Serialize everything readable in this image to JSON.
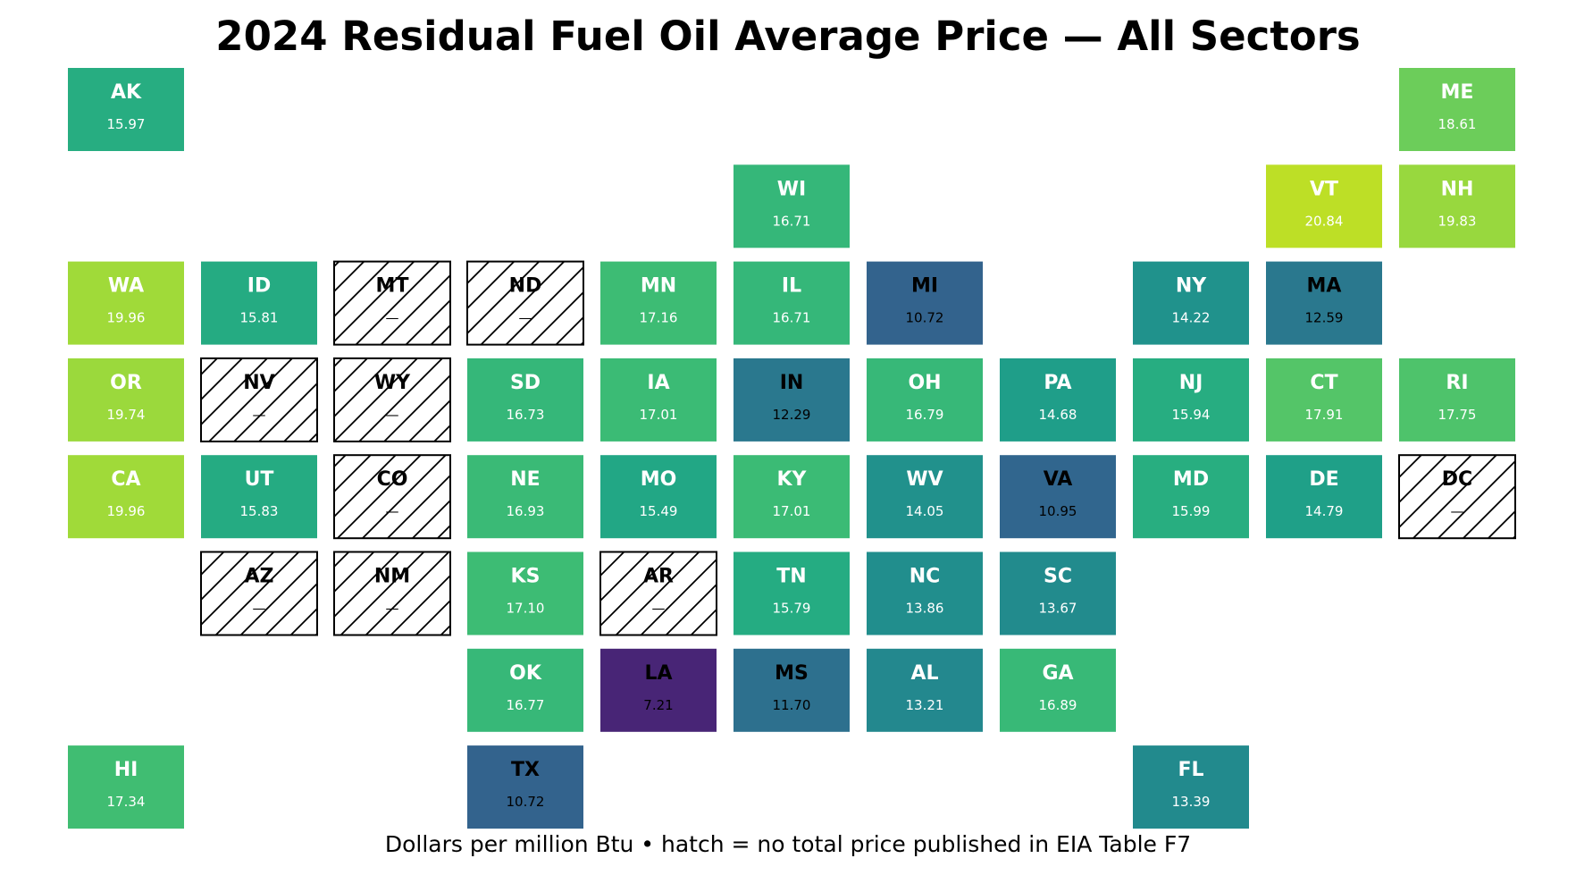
{
  "title": "2024 Residual Fuel Oil Average Price — All Sectors",
  "caption": "Dollars per million Btu • hatch = no total price published in EIA Table F7",
  "missing_label": "—",
  "hatch_fill": "#ffffff",
  "hatch_stroke": "#000000",
  "colors": {
    "dark_text": "#000000",
    "light_text": "#ffffff"
  },
  "states": [
    {
      "abbr": "AK",
      "row": 0,
      "col": 0,
      "value": "15.97",
      "color": "#27ad81",
      "text": "light"
    },
    {
      "abbr": "ME",
      "row": 0,
      "col": 10,
      "value": "18.61",
      "color": "#6ccd5a",
      "text": "light"
    },
    {
      "abbr": "WI",
      "row": 1,
      "col": 5,
      "value": "16.71",
      "color": "#35b779",
      "text": "light"
    },
    {
      "abbr": "VT",
      "row": 1,
      "col": 9,
      "value": "20.84",
      "color": "#bddf26",
      "text": "light"
    },
    {
      "abbr": "NH",
      "row": 1,
      "col": 10,
      "value": "19.83",
      "color": "#98d83e",
      "text": "light"
    },
    {
      "abbr": "WA",
      "row": 2,
      "col": 0,
      "value": "19.96",
      "color": "#a0da39",
      "text": "light"
    },
    {
      "abbr": "ID",
      "row": 2,
      "col": 1,
      "value": "15.81",
      "color": "#25ab82",
      "text": "light"
    },
    {
      "abbr": "MT",
      "row": 2,
      "col": 2,
      "value": null,
      "color": null,
      "text": "dark"
    },
    {
      "abbr": "ND",
      "row": 2,
      "col": 3,
      "value": null,
      "color": null,
      "text": "dark"
    },
    {
      "abbr": "MN",
      "row": 2,
      "col": 4,
      "value": "17.16",
      "color": "#3dbc74",
      "text": "light"
    },
    {
      "abbr": "IL",
      "row": 2,
      "col": 5,
      "value": "16.71",
      "color": "#35b779",
      "text": "light"
    },
    {
      "abbr": "MI",
      "row": 2,
      "col": 6,
      "value": "10.72",
      "color": "#33638d",
      "text": "dark"
    },
    {
      "abbr": "NY",
      "row": 2,
      "col": 8,
      "value": "14.22",
      "color": "#20928c",
      "text": "light"
    },
    {
      "abbr": "MA",
      "row": 2,
      "col": 9,
      "value": "12.59",
      "color": "#2a788e",
      "text": "dark"
    },
    {
      "abbr": "OR",
      "row": 3,
      "col": 0,
      "value": "19.74",
      "color": "#9bd93c",
      "text": "light"
    },
    {
      "abbr": "NV",
      "row": 3,
      "col": 1,
      "value": null,
      "color": null,
      "text": "dark"
    },
    {
      "abbr": "WY",
      "row": 3,
      "col": 2,
      "value": null,
      "color": null,
      "text": "dark"
    },
    {
      "abbr": "SD",
      "row": 3,
      "col": 3,
      "value": "16.73",
      "color": "#35b779",
      "text": "light"
    },
    {
      "abbr": "IA",
      "row": 3,
      "col": 4,
      "value": "17.01",
      "color": "#3bbb75",
      "text": "light"
    },
    {
      "abbr": "IN",
      "row": 3,
      "col": 5,
      "value": "12.29",
      "color": "#2a788e",
      "text": "dark"
    },
    {
      "abbr": "OH",
      "row": 3,
      "col": 6,
      "value": "16.79",
      "color": "#37b878",
      "text": "light"
    },
    {
      "abbr": "PA",
      "row": 3,
      "col": 7,
      "value": "14.68",
      "color": "#1f9e89",
      "text": "light"
    },
    {
      "abbr": "NJ",
      "row": 3,
      "col": 8,
      "value": "15.94",
      "color": "#27ad81",
      "text": "light"
    },
    {
      "abbr": "CT",
      "row": 3,
      "col": 9,
      "value": "17.91",
      "color": "#54c568",
      "text": "light"
    },
    {
      "abbr": "RI",
      "row": 3,
      "col": 10,
      "value": "17.75",
      "color": "#4ec36b",
      "text": "light"
    },
    {
      "abbr": "CA",
      "row": 4,
      "col": 0,
      "value": "19.96",
      "color": "#a0da39",
      "text": "light"
    },
    {
      "abbr": "UT",
      "row": 4,
      "col": 1,
      "value": "15.83",
      "color": "#25ab82",
      "text": "light"
    },
    {
      "abbr": "CO",
      "row": 4,
      "col": 2,
      "value": null,
      "color": null,
      "text": "dark"
    },
    {
      "abbr": "NE",
      "row": 4,
      "col": 3,
      "value": "16.93",
      "color": "#3aba76",
      "text": "light"
    },
    {
      "abbr": "MO",
      "row": 4,
      "col": 4,
      "value": "15.49",
      "color": "#22a785",
      "text": "light"
    },
    {
      "abbr": "KY",
      "row": 4,
      "col": 5,
      "value": "17.01",
      "color": "#3bbb75",
      "text": "light"
    },
    {
      "abbr": "WV",
      "row": 4,
      "col": 6,
      "value": "14.05",
      "color": "#21918c",
      "text": "light"
    },
    {
      "abbr": "VA",
      "row": 4,
      "col": 7,
      "value": "10.95",
      "color": "#31668e",
      "text": "dark"
    },
    {
      "abbr": "MD",
      "row": 4,
      "col": 8,
      "value": "15.99",
      "color": "#28ae80",
      "text": "light"
    },
    {
      "abbr": "DE",
      "row": 4,
      "col": 9,
      "value": "14.79",
      "color": "#1fa088",
      "text": "light"
    },
    {
      "abbr": "DC",
      "row": 4,
      "col": 10,
      "value": null,
      "color": null,
      "text": "dark"
    },
    {
      "abbr": "AZ",
      "row": 5,
      "col": 1,
      "value": null,
      "color": null,
      "text": "dark"
    },
    {
      "abbr": "NM",
      "row": 5,
      "col": 2,
      "value": null,
      "color": null,
      "text": "dark"
    },
    {
      "abbr": "KS",
      "row": 5,
      "col": 3,
      "value": "17.10",
      "color": "#3dbc74",
      "text": "light"
    },
    {
      "abbr": "AR",
      "row": 5,
      "col": 4,
      "value": null,
      "color": null,
      "text": "dark"
    },
    {
      "abbr": "TN",
      "row": 5,
      "col": 5,
      "value": "15.79",
      "color": "#25ac82",
      "text": "light"
    },
    {
      "abbr": "NC",
      "row": 5,
      "col": 6,
      "value": "13.86",
      "color": "#218e8d",
      "text": "light"
    },
    {
      "abbr": "SC",
      "row": 5,
      "col": 7,
      "value": "13.67",
      "color": "#228b8d",
      "text": "light"
    },
    {
      "abbr": "OK",
      "row": 6,
      "col": 3,
      "value": "16.77",
      "color": "#37b878",
      "text": "light"
    },
    {
      "abbr": "LA",
      "row": 6,
      "col": 4,
      "value": "7.21",
      "color": "#482576",
      "text": "dark"
    },
    {
      "abbr": "MS",
      "row": 6,
      "col": 5,
      "value": "11.70",
      "color": "#2d708e",
      "text": "dark"
    },
    {
      "abbr": "AL",
      "row": 6,
      "col": 6,
      "value": "13.21",
      "color": "#23888e",
      "text": "light"
    },
    {
      "abbr": "GA",
      "row": 6,
      "col": 7,
      "value": "16.89",
      "color": "#38b977",
      "text": "light"
    },
    {
      "abbr": "HI",
      "row": 7,
      "col": 0,
      "value": "17.34",
      "color": "#40bd72",
      "text": "light"
    },
    {
      "abbr": "TX",
      "row": 7,
      "col": 3,
      "value": "10.72",
      "color": "#33638d",
      "text": "dark"
    },
    {
      "abbr": "FL",
      "row": 7,
      "col": 8,
      "value": "13.39",
      "color": "#228a8d",
      "text": "light"
    }
  ]
}
